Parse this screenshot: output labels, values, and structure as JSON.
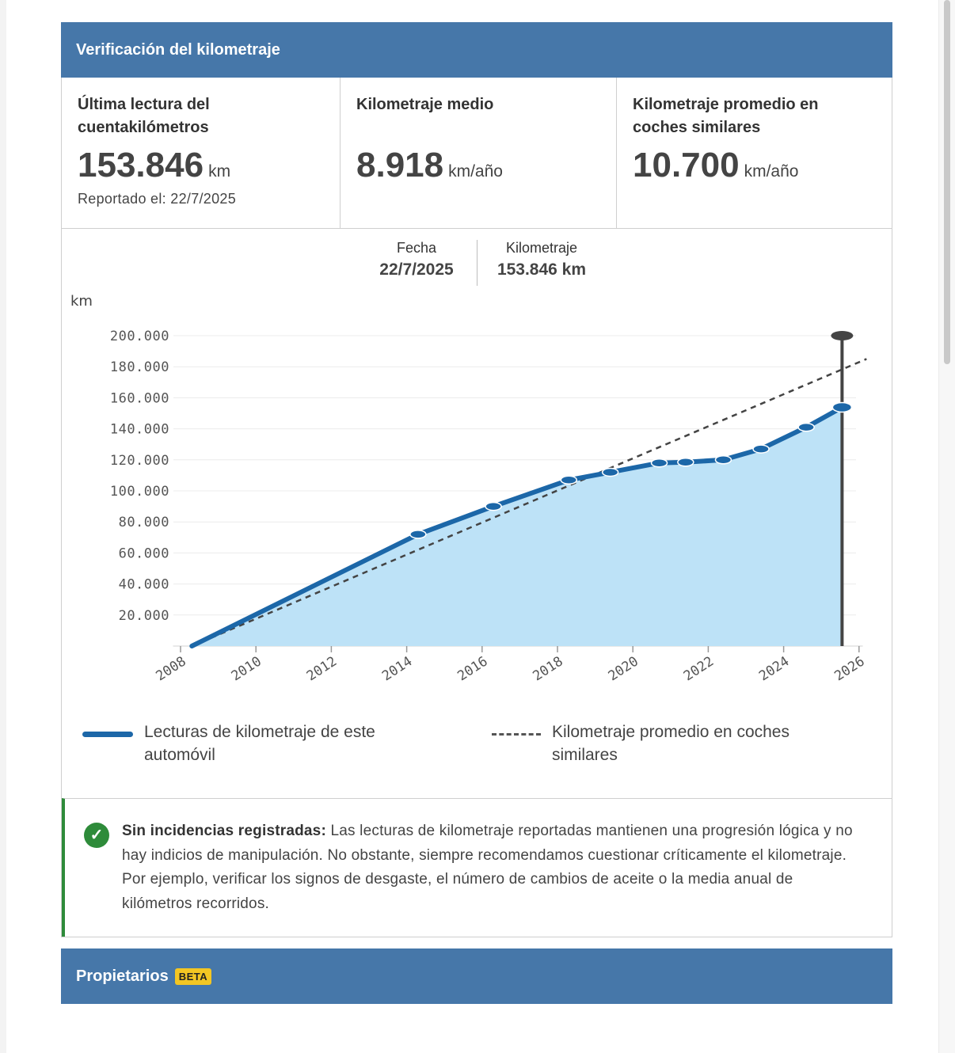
{
  "mileage_section": {
    "title": "Verificación del kilometraje",
    "last_reading": {
      "title": "Última lectura del cuentakilómetros",
      "value": "153.846",
      "unit": "km",
      "reported": "Reportado el: 22/7/2025"
    },
    "average": {
      "title": "Kilometraje medio",
      "value": "8.918",
      "unit": "km/año"
    },
    "similar_average": {
      "title": "Kilometraje promedio en coches similares",
      "value": "10.700",
      "unit": "km/año"
    },
    "tooltip": {
      "date_label": "Fecha",
      "date_value": "22/7/2025",
      "km_label": "Kilometraje",
      "km_value": "153.846 km"
    },
    "legend": {
      "this_car": "Lecturas de kilometraje de este automóvil",
      "similar": "Kilometraje promedio en coches similares"
    },
    "notice": {
      "bold": "Sin incidencias registradas:",
      "text": " Las lecturas de kilometraje reportadas mantienen una progresión lógica y no hay indicios de manipulación. No obstante, siempre recomendamos cuestionar críticamente el kilometraje. Por ejemplo, verificar los signos de desgaste, el número de cambios de aceite o la media anual de kilómetros recorridos."
    }
  },
  "owners_section": {
    "title": "Propietarios",
    "badge": "BETA"
  },
  "colors": {
    "header": "#4677a9",
    "line": "#1c67a8",
    "area": "#bde2f7",
    "success": "#2e8b3a",
    "badge": "#f3c623"
  },
  "chart_data": {
    "type": "area",
    "ylabel": "km",
    "ylim": [
      0,
      200000
    ],
    "xlim": [
      2007.5,
      2026.2
    ],
    "y_ticks": [
      "20.000",
      "40.000",
      "60.000",
      "80.000",
      "100.000",
      "120.000",
      "140.000",
      "160.000",
      "180.000",
      "200.000"
    ],
    "y_tick_values": [
      20000,
      40000,
      60000,
      80000,
      100000,
      120000,
      140000,
      160000,
      180000,
      200000
    ],
    "x_ticks": [
      "2008",
      "2010",
      "2012",
      "2014",
      "2016",
      "2018",
      "2020",
      "2022",
      "2024",
      "2026"
    ],
    "x_tick_values": [
      2008,
      2010,
      2012,
      2014,
      2016,
      2018,
      2020,
      2022,
      2024,
      2026
    ],
    "series": [
      {
        "name": "Lecturas de kilometraje de este automóvil",
        "style": "solid",
        "x": [
          2008.3,
          2014.3,
          2016.3,
          2018.3,
          2019.4,
          2020.7,
          2021.4,
          2022.4,
          2023.4,
          2024.6,
          2025.55
        ],
        "values": [
          0,
          72000,
          90000,
          107000,
          112000,
          118000,
          118500,
          120000,
          127000,
          141000,
          153846
        ]
      },
      {
        "name": "Kilometraje promedio en coches similares",
        "style": "dashed",
        "x": [
          2008.3,
          2026.2
        ],
        "values": [
          0,
          185000
        ]
      }
    ],
    "marker": {
      "x": 2025.55,
      "top": 200000
    }
  }
}
